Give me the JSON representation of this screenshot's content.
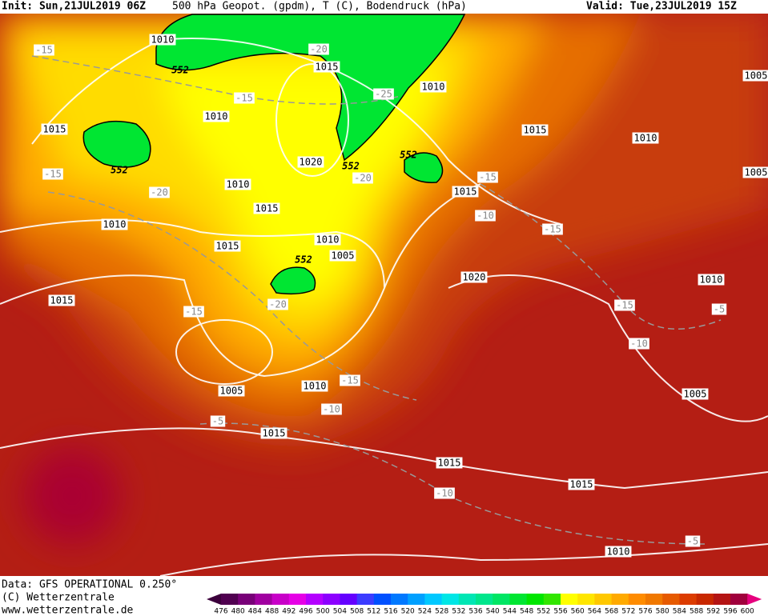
{
  "header": {
    "init": "Init: Sun,21JUL2019 06Z",
    "title": "500 hPa Geopot. (gpdm), T (C), Bodendruck (hPa)",
    "valid": "Valid: Tue,23JUL2019 15Z"
  },
  "footer": {
    "data": "Data: GFS OPERATIONAL 0.250°",
    "copyright": "(C) Wetterzentrale",
    "url": "www.wetterzentrale.de"
  },
  "colorbar": {
    "labels": [
      476,
      480,
      484,
      488,
      492,
      496,
      500,
      504,
      508,
      512,
      516,
      520,
      524,
      528,
      532,
      536,
      540,
      544,
      548,
      552,
      556,
      560,
      564,
      568,
      572,
      576,
      580,
      584,
      588,
      592,
      596,
      600
    ],
    "colors": [
      "#500050",
      "#780078",
      "#a000a0",
      "#c800c8",
      "#e600e6",
      "#b400ff",
      "#8c00ff",
      "#6400ff",
      "#3c3cff",
      "#0050ff",
      "#0078ff",
      "#00a0ff",
      "#00c8ff",
      "#00e6e6",
      "#00e6b4",
      "#00e68c",
      "#00e664",
      "#00e632",
      "#00e600",
      "#32e600",
      "#ffff00",
      "#ffe600",
      "#ffc800",
      "#ffaa00",
      "#ff8c00",
      "#f07800",
      "#e65a00",
      "#dc3c00",
      "#c82800",
      "#b41414",
      "#a0003c"
    ]
  },
  "map": {
    "pressure_labels": [
      "1010",
      "1015",
      "1010",
      "1010",
      "1015",
      "1015",
      "1010",
      "1020",
      "1010",
      "1015",
      "1015",
      "1010",
      "1015",
      "1010",
      "1005",
      "1020",
      "1010",
      "1015",
      "1005",
      "1010",
      "1005",
      "1015",
      "1015",
      "1015",
      "1010",
      "1005",
      "1005"
    ],
    "temperature_labels": [
      "-15",
      "-20",
      "-15",
      "-25",
      "-15",
      "-20",
      "-20",
      "-15",
      "-10",
      "-15",
      "-20",
      "-15",
      "-15",
      "-5",
      "-10",
      "-15",
      "-10",
      "-5",
      "-10",
      "-5"
    ],
    "geopotential_labels": [
      "552",
      "552",
      "552",
      "552",
      "552"
    ]
  }
}
